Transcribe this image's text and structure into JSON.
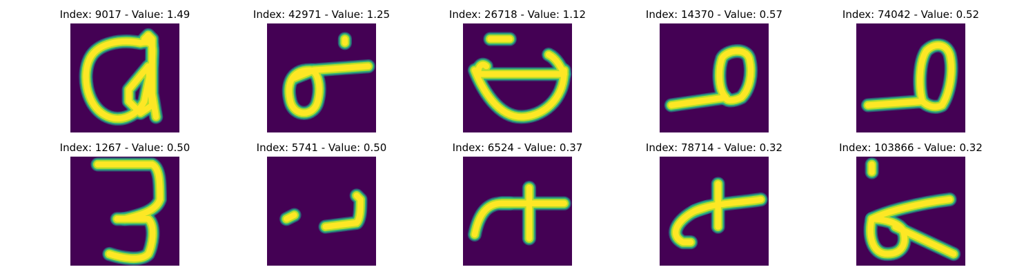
{
  "colors": {
    "background": "#440154",
    "stroke_core": "#fde725",
    "stroke_mid": "#b5de2b",
    "stroke_edge": "#35b779",
    "stroke_halo": "#21918c"
  },
  "panels": [
    {
      "title": "Index: 9017 - Value: 1.49",
      "glyph": "loop-a"
    },
    {
      "title": "Index: 42971 - Value: 1.25",
      "glyph": "loop-right-tail"
    },
    {
      "title": "Index: 26718 - Value: 1.12",
      "glyph": "bowl-with-bar"
    },
    {
      "title": "Index: 14370 - Value: 0.57",
      "glyph": "baseline-loop"
    },
    {
      "title": "Index: 74042 - Value: 0.52",
      "glyph": "baseline-tall-loop"
    },
    {
      "title": "Index: 1267 - Value: 0.50",
      "glyph": "three"
    },
    {
      "title": "Index: 5741 - Value: 0.50",
      "glyph": "dot-and-hook"
    },
    {
      "title": "Index: 6524 - Value: 0.37",
      "glyph": "cross-arc"
    },
    {
      "title": "Index: 78714 - Value: 0.32",
      "glyph": "cross-curl"
    },
    {
      "title": "Index: 103866 - Value: 0.32",
      "glyph": "loop-diagonal"
    }
  ]
}
